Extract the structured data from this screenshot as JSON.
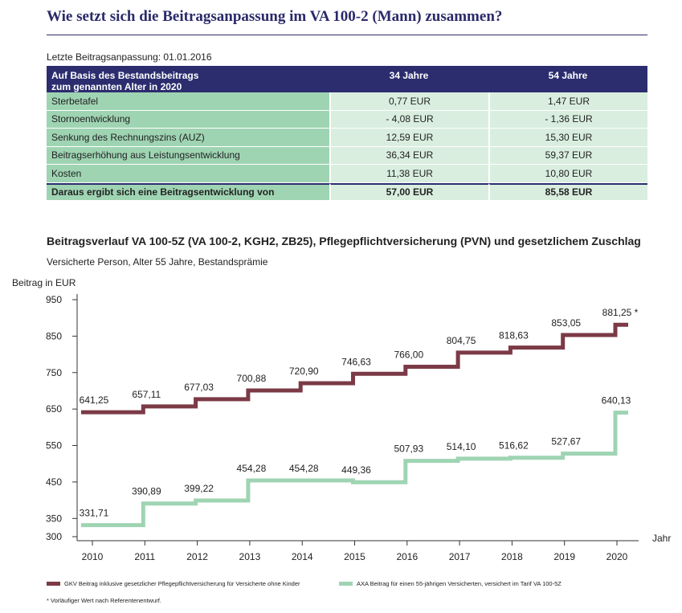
{
  "title": "Wie setzt sich die Beitragsanpassung im VA 100-2 (Mann) zusammen?",
  "last_adjustment": "Letzte Beitragsanpassung: 01.01.2016",
  "table": {
    "header_line1": "Auf Basis des Bestandsbeitrags",
    "header_line2": "zum genannten Alter in 2020",
    "col1": "34 Jahre",
    "col2": "54 Jahre",
    "rows": [
      {
        "label": "Sterbetafel",
        "v1": "0,77 EUR",
        "v2": "1,47 EUR"
      },
      {
        "label": "Stornoentwicklung",
        "v1": "- 4,08 EUR",
        "v2": "- 1,36 EUR"
      },
      {
        "label": "Senkung des Rechnungszins (AUZ)",
        "v1": "12,59 EUR",
        "v2": "15,30 EUR"
      },
      {
        "label": "Beitragserhöhung aus Leistungsentwicklung",
        "v1": "36,34 EUR",
        "v2": "59,37 EUR"
      },
      {
        "label": "Kosten",
        "v1": "11,38 EUR",
        "v2": "10,80 EUR"
      }
    ],
    "total": {
      "label": "Daraus ergibt sich eine Beitragsentwicklung von",
      "v1": "57,00 EUR",
      "v2": "85,58 EUR"
    }
  },
  "chart_title": "Beitragsverlauf VA 100-5Z (VA 100-2, KGH2, ZB25), Pflegepflichtversicherung (PVN) und gesetzlichem Zuschlag",
  "chart_subtitle": "Versicherte Person, Alter 55 Jahre, Bestandsprämie",
  "footnote": "* Vorläufiger Wert nach Referentenentwurf.",
  "chart_data": {
    "type": "line",
    "step": true,
    "ylabel": "Beitrag in EUR",
    "xlabel": "Jahr",
    "ylim": [
      300,
      950
    ],
    "yticks": [
      300,
      350,
      450,
      550,
      650,
      750,
      850,
      950
    ],
    "x": [
      2010,
      2011,
      2012,
      2013,
      2014,
      2015,
      2016,
      2017,
      2018,
      2019,
      2020
    ],
    "series": [
      {
        "name": "GKV Beitrag inklusive gesetzlicher Pflegepflichtversicherung für Versicherte ohne Kinder",
        "color": "#7b3a46",
        "values": [
          641.25,
          657.11,
          677.03,
          700.88,
          720.9,
          746.63,
          766.0,
          804.75,
          818.63,
          853.05,
          881.25
        ],
        "labels": [
          "641,25",
          "657,11",
          "677,03",
          "700,88",
          "720,90",
          "746,63",
          "766,00",
          "804,75",
          "818,63",
          "853,05",
          "881,25 *"
        ]
      },
      {
        "name": "AXA Beitrag für einen 55-jährigen Versicherten, versichert im Tarif VA 100-5Z",
        "color": "#9fd4b3",
        "values": [
          331.71,
          390.89,
          399.22,
          454.28,
          454.28,
          449.36,
          507.93,
          514.1,
          516.62,
          527.67,
          640.13
        ],
        "labels": [
          "331,71",
          "390,89",
          "399,22",
          "454,28",
          "454,28",
          "449,36",
          "507,93",
          "514,10",
          "516,62",
          "527,67",
          "640,13"
        ]
      }
    ]
  }
}
